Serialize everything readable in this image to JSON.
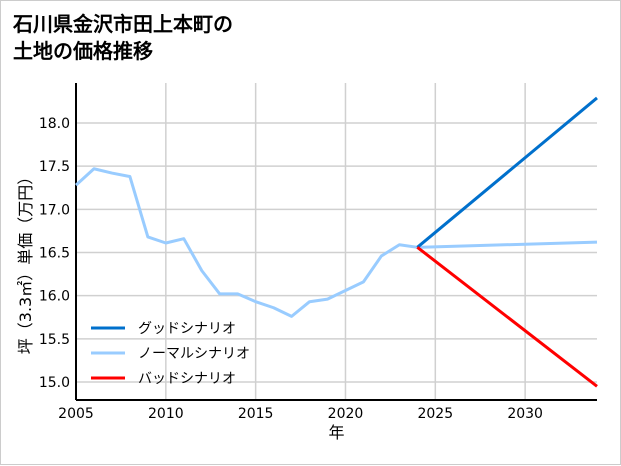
{
  "chart_data": {
    "type": "line",
    "title": "石川県金沢市田上本町の\n土地の価格推移",
    "xlabel": "年",
    "ylabel": "坪（3.3㎡）単価（万円）",
    "xlim": [
      2005,
      2034
    ],
    "ylim": [
      14.8,
      18.45
    ],
    "xticks": [
      2005,
      2010,
      2015,
      2020,
      2025,
      2030
    ],
    "yticks": [
      15.0,
      15.5,
      16.0,
      16.5,
      17.0,
      17.5,
      18.0
    ],
    "grid": true,
    "legend_position": "bottom-left",
    "series": [
      {
        "name": "ノーマルシナリオ",
        "color": "#99ccff",
        "x": [
          2005,
          2006,
          2007,
          2008,
          2009,
          2010,
          2011,
          2012,
          2013,
          2014,
          2015,
          2016,
          2017,
          2018,
          2019,
          2020,
          2021,
          2022,
          2023,
          2024,
          2034
        ],
        "y": [
          17.28,
          17.47,
          17.42,
          17.38,
          16.68,
          16.61,
          16.66,
          16.29,
          16.02,
          16.02,
          15.93,
          15.86,
          15.76,
          15.93,
          15.96,
          16.06,
          16.16,
          16.46,
          16.59,
          16.56,
          16.62
        ]
      },
      {
        "name": "グッドシナリオ",
        "color": "#0070cc",
        "x": [
          2024,
          2034
        ],
        "y": [
          16.56,
          18.29
        ]
      },
      {
        "name": "バッドシナリオ",
        "color": "#ff0000",
        "x": [
          2024,
          2034
        ],
        "y": [
          16.56,
          14.95
        ]
      }
    ],
    "legend_order": [
      1,
      0,
      2
    ]
  }
}
